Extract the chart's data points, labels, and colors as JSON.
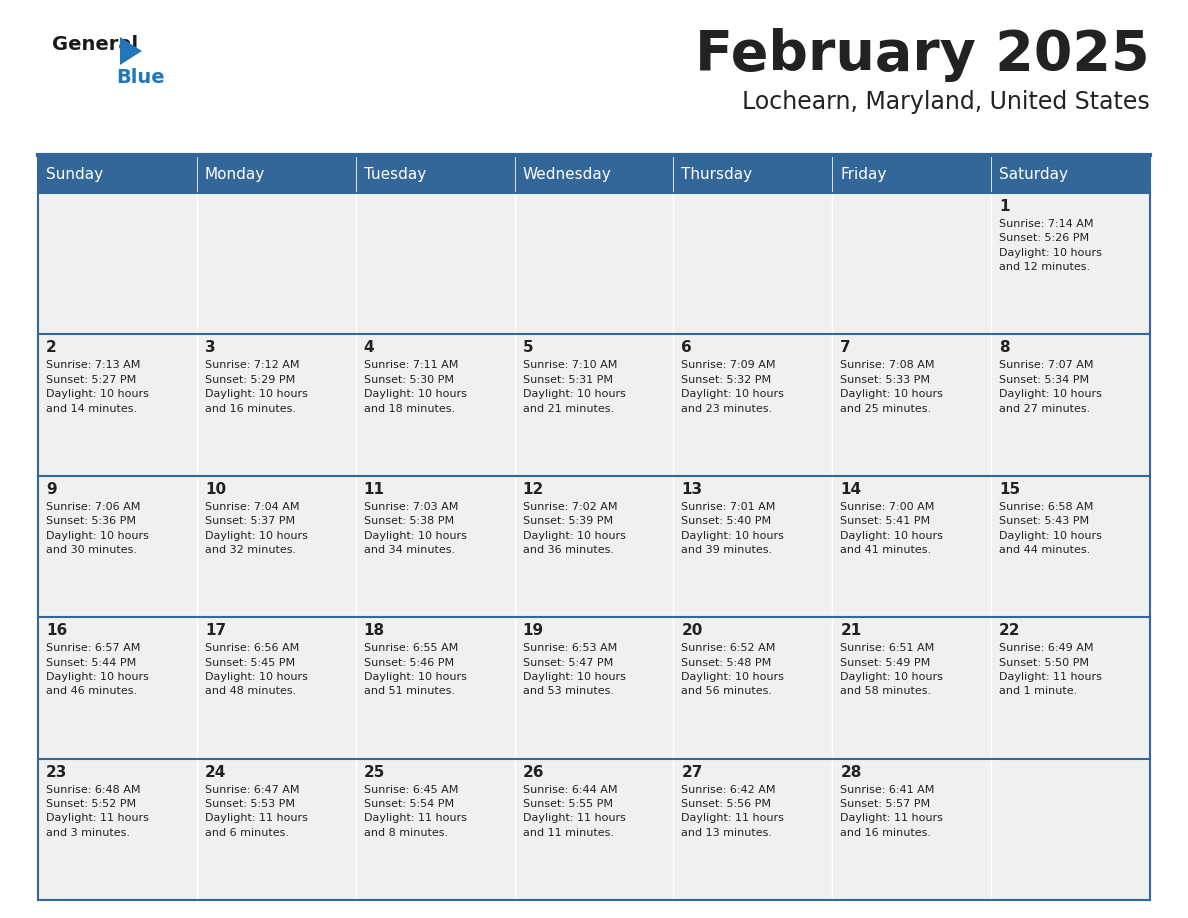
{
  "title": "February 2025",
  "subtitle": "Lochearn, Maryland, United States",
  "header_bg": "#336699",
  "header_text_color": "#ffffff",
  "cell_bg": "#f0f0f0",
  "divider_color": "#336699",
  "text_color": "#222222",
  "days_of_week": [
    "Sunday",
    "Monday",
    "Tuesday",
    "Wednesday",
    "Thursday",
    "Friday",
    "Saturday"
  ],
  "weeks": [
    [
      {
        "day": null,
        "info": null
      },
      {
        "day": null,
        "info": null
      },
      {
        "day": null,
        "info": null
      },
      {
        "day": null,
        "info": null
      },
      {
        "day": null,
        "info": null
      },
      {
        "day": null,
        "info": null
      },
      {
        "day": "1",
        "info": "Sunrise: 7:14 AM\nSunset: 5:26 PM\nDaylight: 10 hours\nand 12 minutes."
      }
    ],
    [
      {
        "day": "2",
        "info": "Sunrise: 7:13 AM\nSunset: 5:27 PM\nDaylight: 10 hours\nand 14 minutes."
      },
      {
        "day": "3",
        "info": "Sunrise: 7:12 AM\nSunset: 5:29 PM\nDaylight: 10 hours\nand 16 minutes."
      },
      {
        "day": "4",
        "info": "Sunrise: 7:11 AM\nSunset: 5:30 PM\nDaylight: 10 hours\nand 18 minutes."
      },
      {
        "day": "5",
        "info": "Sunrise: 7:10 AM\nSunset: 5:31 PM\nDaylight: 10 hours\nand 21 minutes."
      },
      {
        "day": "6",
        "info": "Sunrise: 7:09 AM\nSunset: 5:32 PM\nDaylight: 10 hours\nand 23 minutes."
      },
      {
        "day": "7",
        "info": "Sunrise: 7:08 AM\nSunset: 5:33 PM\nDaylight: 10 hours\nand 25 minutes."
      },
      {
        "day": "8",
        "info": "Sunrise: 7:07 AM\nSunset: 5:34 PM\nDaylight: 10 hours\nand 27 minutes."
      }
    ],
    [
      {
        "day": "9",
        "info": "Sunrise: 7:06 AM\nSunset: 5:36 PM\nDaylight: 10 hours\nand 30 minutes."
      },
      {
        "day": "10",
        "info": "Sunrise: 7:04 AM\nSunset: 5:37 PM\nDaylight: 10 hours\nand 32 minutes."
      },
      {
        "day": "11",
        "info": "Sunrise: 7:03 AM\nSunset: 5:38 PM\nDaylight: 10 hours\nand 34 minutes."
      },
      {
        "day": "12",
        "info": "Sunrise: 7:02 AM\nSunset: 5:39 PM\nDaylight: 10 hours\nand 36 minutes."
      },
      {
        "day": "13",
        "info": "Sunrise: 7:01 AM\nSunset: 5:40 PM\nDaylight: 10 hours\nand 39 minutes."
      },
      {
        "day": "14",
        "info": "Sunrise: 7:00 AM\nSunset: 5:41 PM\nDaylight: 10 hours\nand 41 minutes."
      },
      {
        "day": "15",
        "info": "Sunrise: 6:58 AM\nSunset: 5:43 PM\nDaylight: 10 hours\nand 44 minutes."
      }
    ],
    [
      {
        "day": "16",
        "info": "Sunrise: 6:57 AM\nSunset: 5:44 PM\nDaylight: 10 hours\nand 46 minutes."
      },
      {
        "day": "17",
        "info": "Sunrise: 6:56 AM\nSunset: 5:45 PM\nDaylight: 10 hours\nand 48 minutes."
      },
      {
        "day": "18",
        "info": "Sunrise: 6:55 AM\nSunset: 5:46 PM\nDaylight: 10 hours\nand 51 minutes."
      },
      {
        "day": "19",
        "info": "Sunrise: 6:53 AM\nSunset: 5:47 PM\nDaylight: 10 hours\nand 53 minutes."
      },
      {
        "day": "20",
        "info": "Sunrise: 6:52 AM\nSunset: 5:48 PM\nDaylight: 10 hours\nand 56 minutes."
      },
      {
        "day": "21",
        "info": "Sunrise: 6:51 AM\nSunset: 5:49 PM\nDaylight: 10 hours\nand 58 minutes."
      },
      {
        "day": "22",
        "info": "Sunrise: 6:49 AM\nSunset: 5:50 PM\nDaylight: 11 hours\nand 1 minute."
      }
    ],
    [
      {
        "day": "23",
        "info": "Sunrise: 6:48 AM\nSunset: 5:52 PM\nDaylight: 11 hours\nand 3 minutes."
      },
      {
        "day": "24",
        "info": "Sunrise: 6:47 AM\nSunset: 5:53 PM\nDaylight: 11 hours\nand 6 minutes."
      },
      {
        "day": "25",
        "info": "Sunrise: 6:45 AM\nSunset: 5:54 PM\nDaylight: 11 hours\nand 8 minutes."
      },
      {
        "day": "26",
        "info": "Sunrise: 6:44 AM\nSunset: 5:55 PM\nDaylight: 11 hours\nand 11 minutes."
      },
      {
        "day": "27",
        "info": "Sunrise: 6:42 AM\nSunset: 5:56 PM\nDaylight: 11 hours\nand 13 minutes."
      },
      {
        "day": "28",
        "info": "Sunrise: 6:41 AM\nSunset: 5:57 PM\nDaylight: 11 hours\nand 16 minutes."
      },
      {
        "day": null,
        "info": null
      }
    ]
  ]
}
